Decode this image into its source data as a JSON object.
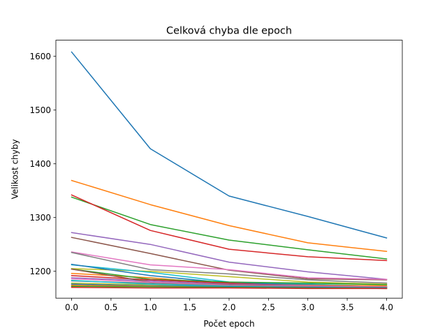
{
  "chart_data": {
    "type": "line",
    "title": "Celková chyba dle epoch",
    "xlabel": "Počet epoch",
    "ylabel": "Velikost chyby",
    "xlim": [
      -0.2,
      4.2
    ],
    "ylim": [
      1150,
      1630
    ],
    "x": [
      0,
      1,
      2,
      3,
      4
    ],
    "x_ticks": [
      0.0,
      0.5,
      1.0,
      1.5,
      2.0,
      2.5,
      3.0,
      3.5,
      4.0
    ],
    "x_tick_labels": [
      "0.0",
      "0.5",
      "1.0",
      "1.5",
      "2.0",
      "2.5",
      "3.0",
      "3.5",
      "4.0"
    ],
    "y_ticks": [
      1200,
      1300,
      1400,
      1500,
      1600
    ],
    "y_tick_labels": [
      "1200",
      "1300",
      "1400",
      "1500",
      "1600"
    ],
    "grid": false,
    "legend": false,
    "series": [
      {
        "color": "#1f77b4",
        "values": [
          1608,
          1428,
          1340,
          1302,
          1262
        ]
      },
      {
        "color": "#ff7f0e",
        "values": [
          1369,
          1324,
          1285,
          1253,
          1237
        ]
      },
      {
        "color": "#2ca02c",
        "values": [
          1338,
          1287,
          1258,
          1240,
          1223
        ]
      },
      {
        "color": "#d62728",
        "values": [
          1342,
          1276,
          1241,
          1227,
          1220
        ]
      },
      {
        "color": "#9467bd",
        "values": [
          1272,
          1250,
          1217,
          1199,
          1185
        ]
      },
      {
        "color": "#8c564b",
        "values": [
          1263,
          1233,
          1202,
          1186,
          1184
        ]
      },
      {
        "color": "#e377c2",
        "values": [
          1236,
          1212,
          1203,
          1188,
          1185
        ]
      },
      {
        "color": "#7f7f7f",
        "values": [
          1235,
          1203,
          1195,
          1184,
          1178
        ]
      },
      {
        "color": "#bcbd22",
        "values": [
          1205,
          1200,
          1190,
          1180,
          1176
        ]
      },
      {
        "color": "#17becf",
        "values": [
          1212,
          1198,
          1180,
          1176,
          1172
        ]
      },
      {
        "color": "#1f77b4",
        "values": [
          1213,
          1192,
          1178,
          1175,
          1171
        ]
      },
      {
        "color": "#ff7f0e",
        "values": [
          1196,
          1188,
          1176,
          1174,
          1173
        ]
      },
      {
        "color": "#2ca02c",
        "values": [
          1204,
          1185,
          1180,
          1178,
          1175
        ]
      },
      {
        "color": "#d62728",
        "values": [
          1192,
          1184,
          1178,
          1172,
          1170
        ]
      },
      {
        "color": "#9467bd",
        "values": [
          1188,
          1182,
          1176,
          1173,
          1171
        ]
      },
      {
        "color": "#8c564b",
        "values": [
          1204,
          1180,
          1175,
          1172,
          1170
        ]
      },
      {
        "color": "#e377c2",
        "values": [
          1186,
          1180,
          1174,
          1172,
          1171
        ]
      },
      {
        "color": "#7f7f7f",
        "values": [
          1182,
          1178,
          1173,
          1171,
          1170
        ]
      },
      {
        "color": "#bcbd22",
        "values": [
          1178,
          1175,
          1172,
          1170,
          1169
        ]
      },
      {
        "color": "#17becf",
        "values": [
          1183,
          1176,
          1172,
          1170,
          1169
        ]
      },
      {
        "color": "#1f77b4",
        "values": [
          1176,
          1173,
          1171,
          1170,
          1169
        ]
      },
      {
        "color": "#ff7f0e",
        "values": [
          1174,
          1172,
          1170,
          1169,
          1168
        ]
      },
      {
        "color": "#2ca02c",
        "values": [
          1172,
          1171,
          1170,
          1169,
          1168
        ]
      },
      {
        "color": "#d62728",
        "values": [
          1170,
          1169,
          1169,
          1168,
          1168
        ]
      }
    ]
  }
}
